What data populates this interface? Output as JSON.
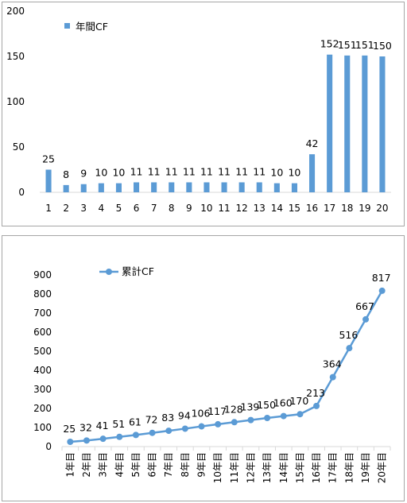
{
  "colors": {
    "series": "#5b9bd5",
    "axis": "#d9d9d9",
    "text": "#000000",
    "border": "#a6a6a6"
  },
  "chart_data": [
    {
      "type": "bar",
      "legend": "top-left",
      "grid": false,
      "ylim": [
        0,
        200
      ],
      "yticks": [
        "0",
        "50",
        "100",
        "150",
        "200"
      ],
      "categories": [
        "1",
        "2",
        "3",
        "4",
        "5",
        "6",
        "7",
        "8",
        "9",
        "10",
        "11",
        "12",
        "13",
        "14",
        "15",
        "16",
        "17",
        "18",
        "19",
        "20"
      ],
      "series": [
        {
          "name": "年間CF",
          "values": [
            25,
            8,
            9,
            10,
            10,
            11,
            11,
            11,
            11,
            11,
            11,
            11,
            11,
            10,
            10,
            42,
            152,
            151,
            151,
            150
          ]
        }
      ],
      "data_labels": [
        "25",
        "8",
        "9",
        "10",
        "10",
        "11",
        "11",
        "11",
        "11",
        "11",
        "11",
        "11",
        "11",
        "10",
        "10",
        "42",
        "152",
        "151",
        "151",
        "150"
      ]
    },
    {
      "type": "line",
      "legend": "top-left",
      "grid": false,
      "ylim": [
        0,
        900
      ],
      "yticks": [
        "0",
        "100",
        "200",
        "300",
        "400",
        "500",
        "600",
        "700",
        "800",
        "900"
      ],
      "categories": [
        "1年目",
        "2年目",
        "3年目",
        "4年目",
        "5年目",
        "6年目",
        "7年目",
        "8年目",
        "9年目",
        "10年目",
        "11年目",
        "12年目",
        "13年目",
        "14年目",
        "15年目",
        "16年目",
        "17年目",
        "18年目",
        "19年目",
        "20年目"
      ],
      "series": [
        {
          "name": "累計CF",
          "values": [
            25,
            32,
            41,
            51,
            61,
            72,
            83,
            94,
            106,
            117,
            128,
            139,
            150,
            160,
            170,
            213,
            364,
            516,
            667,
            817
          ]
        }
      ],
      "data_labels": [
        "25",
        "32",
        "41",
        "51",
        "61",
        "72",
        "83",
        "94",
        "106",
        "117",
        "128",
        "139",
        "150",
        "160",
        "170",
        "213",
        "364",
        "516",
        "667",
        "817"
      ]
    }
  ]
}
